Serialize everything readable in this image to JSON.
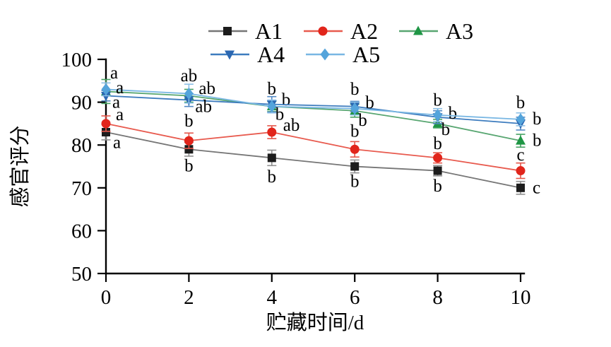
{
  "figure": {
    "background": "#ffffff",
    "text_color": "#000000"
  },
  "chart_data": {
    "type": "line",
    "title": "",
    "xlabel": "贮藏时间/d",
    "ylabel": "感官评分",
    "x": [
      0,
      2,
      4,
      6,
      8,
      10
    ],
    "xlim": [
      0,
      10
    ],
    "ylim": [
      50,
      100
    ],
    "x_ticks": [
      "0",
      "2",
      "4",
      "6",
      "8",
      "10"
    ],
    "y_ticks": [
      "50",
      "60",
      "70",
      "80",
      "90",
      "100"
    ],
    "grid": false,
    "legend_position": "top-two-rows",
    "legend_rows": [
      [
        "A1",
        "A2",
        "A3"
      ],
      [
        "A4",
        "A5"
      ]
    ],
    "series": [
      {
        "name": "A1",
        "marker": "square",
        "line_color": "#767676",
        "marker_color": "#1c1c1c",
        "error_color": "#909090",
        "values": [
          83,
          79,
          77,
          75,
          74,
          70
        ],
        "errors": [
          1.8,
          1.6,
          1.8,
          1.5,
          1.2,
          1.5
        ],
        "sig_letters": [
          [
            "a",
            80.8,
            10
          ],
          [
            "b",
            75.3,
            0
          ],
          [
            "b",
            72.8,
            0
          ],
          [
            "b",
            71.7,
            0
          ],
          [
            "b",
            70.6,
            0
          ],
          [
            "c",
            70.2,
            17
          ]
        ]
      },
      {
        "name": "A2",
        "marker": "circle",
        "line_color": "#e85a4e",
        "marker_color": "#e1251b",
        "error_color": "#e5564a",
        "values": [
          85,
          81,
          83,
          79,
          77,
          74
        ],
        "errors": [
          1.8,
          1.8,
          1.5,
          1.8,
          1.2,
          1.8
        ],
        "sig_letters": [
          [
            "a",
            87.3,
            14
          ],
          [
            "b",
            85.8,
            0
          ],
          [
            "ab",
            84.8,
            16
          ],
          [
            "b",
            83.4,
            0
          ],
          [
            "b",
            80.5,
            0
          ],
          [
            "c",
            77.9,
            0
          ]
        ]
      },
      {
        "name": "A3",
        "marker": "triangle-up",
        "line_color": "#58a671",
        "marker_color": "#1f9645",
        "error_color": "#47a263",
        "values": [
          92.5,
          91.5,
          89,
          88,
          85,
          81
        ],
        "errors": [
          2.8,
          1.5,
          1.2,
          1.5,
          1.0,
          1.5
        ],
        "sig_letters": [
          [
            "a",
            97.0,
            6
          ],
          [
            "ab",
            93.4,
            14
          ],
          [
            "b",
            90.8,
            14
          ],
          [
            "b",
            86.0,
            5
          ],
          [
            "b",
            83.8,
            5
          ],
          [
            "b",
            81.3,
            17
          ]
        ]
      },
      {
        "name": "A4",
        "marker": "triangle-down",
        "line_color": "#3d7cbe",
        "marker_color": "#2b67b1",
        "error_color": "#5489c4",
        "values": [
          91.5,
          90.5,
          89.5,
          89,
          86.5,
          85
        ],
        "errors": [
          1.2,
          1.5,
          1.8,
          1.2,
          1.5,
          1.5
        ],
        "sig_letters": [
          [
            "a",
            90.2,
            9
          ],
          [
            "ab",
            89.2,
            9
          ],
          [
            "b",
            93.3,
            0
          ],
          [
            "b",
            93.2,
            0
          ],
          [
            "b",
            87.6,
            15
          ],
          [
            "b",
            86.3,
            17
          ]
        ]
      },
      {
        "name": "A5",
        "marker": "diamond",
        "line_color": "#79b7e3",
        "marker_color": "#54a4db",
        "error_color": "#8cc0e6",
        "values": [
          93,
          92,
          89,
          88.5,
          87,
          86
        ],
        "errors": [
          1.5,
          2.2,
          1.5,
          1.5,
          1.5,
          1.5
        ],
        "sig_letters": [
          [
            "a",
            93.6,
            14
          ],
          [
            "ab",
            96.4,
            0
          ],
          [
            "b",
            87.4,
            5
          ],
          [
            "b",
            90.1,
            15
          ],
          [
            "b",
            90.7,
            0
          ],
          [
            "b",
            90.1,
            0
          ]
        ]
      }
    ]
  }
}
